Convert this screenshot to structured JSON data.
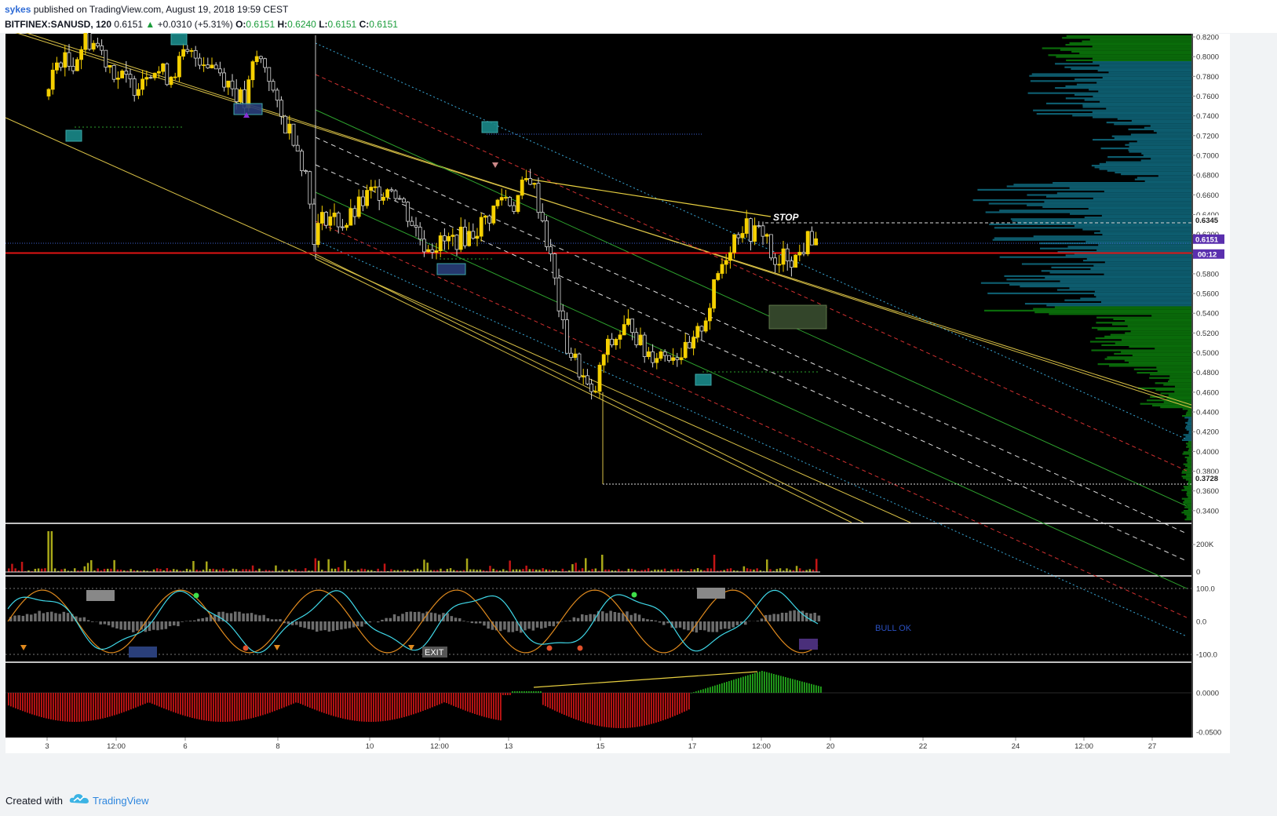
{
  "header": {
    "author": "sykes",
    "published": "published on TradingView.com, August 19, 2018 19:59 CEST",
    "symbol": "BITFINEX:SANUSD, 120",
    "last": "0.6151",
    "change": "+0.0310 (+5.31%)",
    "open_label": "O:",
    "open": "0.6151",
    "high_label": "H:",
    "high": "0.6240",
    "low_label": "L:",
    "low": "0.6151",
    "close_label": "C:",
    "close": "0.6151"
  },
  "colors": {
    "background": "#000000",
    "bull_candle": "#f5d000",
    "bear_candle": "#d8d8d8",
    "support_line": "#e01414",
    "price_badge": "#5a2fae",
    "volume_profile": "#0d5c6e",
    "volume_profile_high": "#0a6b0a",
    "macd_pos": "#22a51b",
    "macd_neg": "#c41515"
  },
  "chart_data": [
    {
      "type": "candlestick",
      "pane": "price",
      "y_ticks": [
        "0.8200",
        "0.8000",
        "0.7800",
        "0.7600",
        "0.7400",
        "0.7200",
        "0.7000",
        "0.6800",
        "0.6600",
        "0.6400",
        "0.6200",
        "0.6000",
        "0.5800",
        "0.5600",
        "0.5400",
        "0.5200",
        "0.5000",
        "0.4800",
        "0.4600",
        "0.4400",
        "0.4200",
        "0.4000",
        "0.3800",
        "0.3600",
        "0.3400"
      ],
      "ylim": [
        0.335,
        0.824
      ],
      "x_ticks": [
        "3",
        "12:00",
        "6",
        "8",
        "10",
        "12:00",
        "13",
        "15",
        "17",
        "12:00",
        "20",
        "22",
        "24",
        "12:00",
        "27"
      ],
      "last_price": "0.6151",
      "timer": "00:12",
      "marked_high": "0.6345",
      "marked_low": "0.3728",
      "support_level": 0.601,
      "annotations": [
        "STOP"
      ]
    },
    {
      "type": "bar",
      "pane": "volume",
      "y_ticks": [
        "200K",
        "0"
      ]
    },
    {
      "type": "line",
      "pane": "oscillator",
      "y_ticks": [
        "100.0",
        "0.0",
        "-100.0"
      ],
      "annotations": [
        "EXIT",
        "BULL OK"
      ]
    },
    {
      "type": "bar",
      "pane": "macd_histogram",
      "y_ticks": [
        "0.0000",
        "-0.0500"
      ]
    }
  ],
  "footer": {
    "created_with": "Created with",
    "brand": "TradingView"
  }
}
